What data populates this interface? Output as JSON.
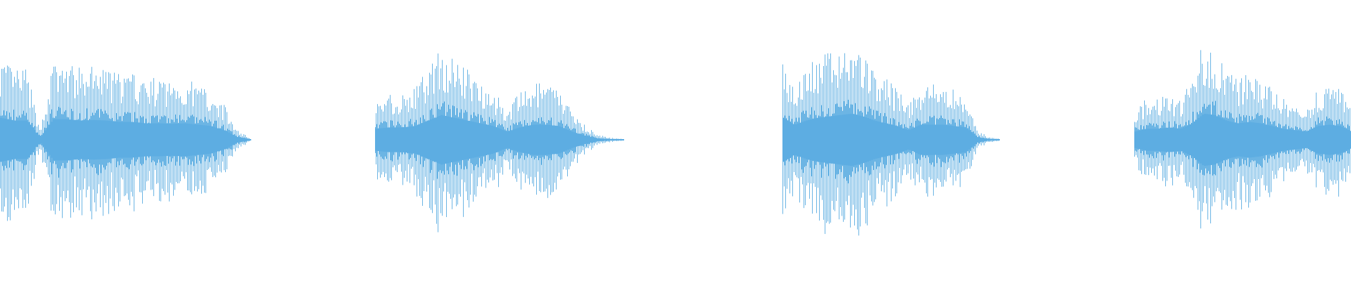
{
  "chart_data": {
    "type": "waveform",
    "color": "#5dade2",
    "background": "#ffffff",
    "axes": "none",
    "grid": false,
    "clips": [
      {
        "envelope": [
          0.8,
          0.7,
          0.7,
          0.1,
          0.75,
          0.75,
          0.7,
          0.72,
          0.7,
          0.65,
          0.65,
          0.6,
          0.6,
          0.58,
          0.6,
          0.55,
          0.5,
          0.35,
          0.1,
          0.02
        ]
      },
      {
        "envelope": [
          0.4,
          0.45,
          0.45,
          0.5,
          0.7,
          0.9,
          0.8,
          0.7,
          0.6,
          0.5,
          0.3,
          0.45,
          0.55,
          0.55,
          0.5,
          0.3,
          0.15,
          0.05,
          0.02,
          0.01
        ]
      },
      {
        "envelope": [
          0.8,
          0.55,
          0.7,
          0.8,
          0.85,
          0.9,
          0.95,
          0.85,
          0.7,
          0.6,
          0.5,
          0.35,
          0.55,
          0.55,
          0.55,
          0.5,
          0.45,
          0.1,
          0.03,
          0.01
        ]
      },
      {
        "envelope": [
          0.3,
          0.4,
          0.4,
          0.45,
          0.4,
          0.6,
          0.95,
          0.9,
          0.7,
          0.6,
          0.65,
          0.6,
          0.5,
          0.4,
          0.35,
          0.3,
          0.5,
          0.55,
          0.5,
          0.3
        ]
      }
    ]
  }
}
